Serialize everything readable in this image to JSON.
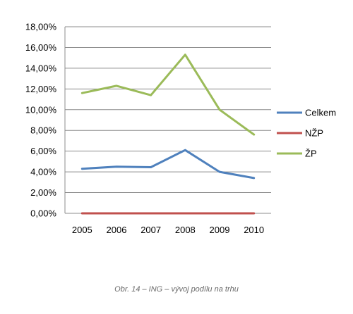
{
  "chart_data": {
    "type": "line",
    "categories": [
      "2005",
      "2006",
      "2007",
      "2008",
      "2009",
      "2010"
    ],
    "ylim": [
      0,
      18
    ],
    "ytick_values": [
      0,
      2,
      4,
      6,
      8,
      10,
      12,
      14,
      16,
      18
    ],
    "ytick_labels": [
      "0,00%",
      "2,00%",
      "4,00%",
      "6,00%",
      "8,00%",
      "10,00%",
      "12,00%",
      "14,00%",
      "16,00%",
      "18,00%"
    ],
    "grid": "horizontal",
    "legend_position": "right",
    "series": [
      {
        "name": "Celkem",
        "color": "#4F81BD",
        "values": [
          4.3,
          4.5,
          4.45,
          6.1,
          4.0,
          3.4
        ]
      },
      {
        "name": "NŽP",
        "color": "#C0504D",
        "values": [
          0,
          0,
          0,
          0,
          0,
          0
        ]
      },
      {
        "name": "ŽP",
        "color": "#9BBB59",
        "values": [
          11.6,
          12.3,
          11.4,
          15.3,
          10.0,
          7.6
        ]
      }
    ]
  },
  "caption": "Obr. 14 – ING – vývoj podílu na trhu"
}
